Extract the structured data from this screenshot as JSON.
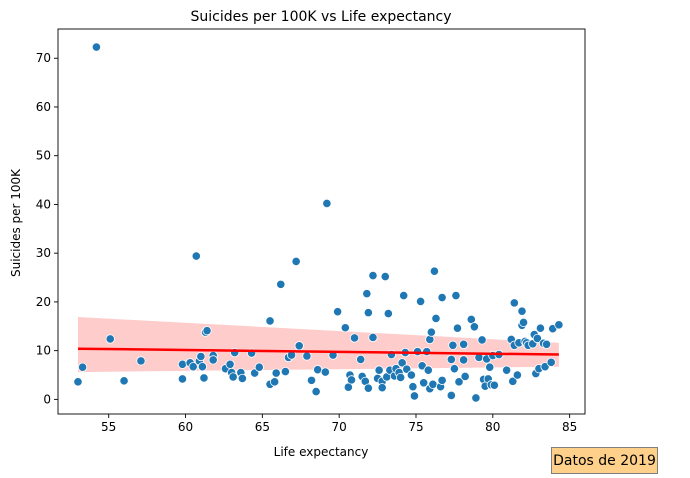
{
  "chart_data": {
    "type": "scatter",
    "title": "Suicides per 100K vs Life expectancy",
    "xlabel": "Life expectancy",
    "ylabel": "Suicides per 100K",
    "xlim": [
      51.7,
      86.0
    ],
    "ylim": [
      -3.0,
      76.0
    ],
    "xticks": [
      55,
      60,
      65,
      70,
      75,
      80,
      85
    ],
    "yticks": [
      0,
      10,
      20,
      30,
      40,
      50,
      60,
      70
    ],
    "grid": false,
    "points": [
      {
        "x": 53.0,
        "y": 3.6
      },
      {
        "x": 53.3,
        "y": 6.6
      },
      {
        "x": 54.2,
        "y": 72.3
      },
      {
        "x": 55.1,
        "y": 12.4
      },
      {
        "x": 56.0,
        "y": 3.8
      },
      {
        "x": 57.1,
        "y": 7.9
      },
      {
        "x": 59.8,
        "y": 4.2
      },
      {
        "x": 59.8,
        "y": 7.2
      },
      {
        "x": 60.3,
        "y": 7.5
      },
      {
        "x": 60.5,
        "y": 6.7
      },
      {
        "x": 60.7,
        "y": 29.4
      },
      {
        "x": 60.9,
        "y": 7.9
      },
      {
        "x": 61.0,
        "y": 8.8
      },
      {
        "x": 61.1,
        "y": 6.7
      },
      {
        "x": 61.2,
        "y": 4.4
      },
      {
        "x": 61.3,
        "y": 13.8
      },
      {
        "x": 61.4,
        "y": 14.1
      },
      {
        "x": 61.8,
        "y": 9.0
      },
      {
        "x": 61.8,
        "y": 8.1
      },
      {
        "x": 62.6,
        "y": 6.3
      },
      {
        "x": 62.9,
        "y": 7.2
      },
      {
        "x": 63.0,
        "y": 5.5
      },
      {
        "x": 63.1,
        "y": 4.6
      },
      {
        "x": 63.2,
        "y": 9.6
      },
      {
        "x": 63.6,
        "y": 5.5
      },
      {
        "x": 63.7,
        "y": 4.3
      },
      {
        "x": 64.3,
        "y": 9.5
      },
      {
        "x": 64.5,
        "y": 5.4
      },
      {
        "x": 64.8,
        "y": 6.6
      },
      {
        "x": 65.5,
        "y": 16.1
      },
      {
        "x": 65.5,
        "y": 3.1
      },
      {
        "x": 65.8,
        "y": 3.6
      },
      {
        "x": 65.9,
        "y": 5.4
      },
      {
        "x": 66.2,
        "y": 23.6
      },
      {
        "x": 66.5,
        "y": 5.7
      },
      {
        "x": 66.7,
        "y": 8.6
      },
      {
        "x": 66.9,
        "y": 9.1
      },
      {
        "x": 67.2,
        "y": 28.3
      },
      {
        "x": 67.4,
        "y": 11.0
      },
      {
        "x": 67.9,
        "y": 8.9
      },
      {
        "x": 68.2,
        "y": 3.9
      },
      {
        "x": 68.5,
        "y": 1.6
      },
      {
        "x": 68.6,
        "y": 6.1
      },
      {
        "x": 69.1,
        "y": 5.6
      },
      {
        "x": 69.2,
        "y": 40.2
      },
      {
        "x": 69.6,
        "y": 9.1
      },
      {
        "x": 69.9,
        "y": 18.0
      },
      {
        "x": 70.4,
        "y": 14.7
      },
      {
        "x": 70.6,
        "y": 2.5
      },
      {
        "x": 70.7,
        "y": 5.0
      },
      {
        "x": 70.8,
        "y": 4.0
      },
      {
        "x": 71.0,
        "y": 12.6
      },
      {
        "x": 71.4,
        "y": 8.2
      },
      {
        "x": 71.5,
        "y": 4.7
      },
      {
        "x": 71.7,
        "y": 3.7
      },
      {
        "x": 71.8,
        "y": 21.7
      },
      {
        "x": 71.9,
        "y": 17.8
      },
      {
        "x": 71.9,
        "y": 2.3
      },
      {
        "x": 72.2,
        "y": 12.7
      },
      {
        "x": 72.2,
        "y": 25.4
      },
      {
        "x": 72.5,
        "y": 4.3
      },
      {
        "x": 72.6,
        "y": 6.0
      },
      {
        "x": 72.8,
        "y": 3.7
      },
      {
        "x": 72.8,
        "y": 2.4
      },
      {
        "x": 73.0,
        "y": 25.2
      },
      {
        "x": 73.1,
        "y": 4.6
      },
      {
        "x": 73.2,
        "y": 17.6
      },
      {
        "x": 73.3,
        "y": 6.0
      },
      {
        "x": 73.4,
        "y": 9.2
      },
      {
        "x": 73.6,
        "y": 4.8
      },
      {
        "x": 73.7,
        "y": 6.3
      },
      {
        "x": 73.9,
        "y": 5.5
      },
      {
        "x": 74.0,
        "y": 4.5
      },
      {
        "x": 74.1,
        "y": 7.5
      },
      {
        "x": 74.2,
        "y": 21.3
      },
      {
        "x": 74.3,
        "y": 9.6
      },
      {
        "x": 74.4,
        "y": 6.2
      },
      {
        "x": 74.7,
        "y": 5.0
      },
      {
        "x": 74.8,
        "y": 2.6
      },
      {
        "x": 74.9,
        "y": 0.7
      },
      {
        "x": 75.1,
        "y": 9.8
      },
      {
        "x": 75.3,
        "y": 20.1
      },
      {
        "x": 75.4,
        "y": 6.9
      },
      {
        "x": 75.5,
        "y": 3.4
      },
      {
        "x": 75.7,
        "y": 9.8
      },
      {
        "x": 75.8,
        "y": 6.0
      },
      {
        "x": 75.9,
        "y": 2.2
      },
      {
        "x": 75.9,
        "y": 12.3
      },
      {
        "x": 76.0,
        "y": 13.8
      },
      {
        "x": 76.1,
        "y": 3.1
      },
      {
        "x": 76.2,
        "y": 26.3
      },
      {
        "x": 76.3,
        "y": 16.6
      },
      {
        "x": 76.6,
        "y": 2.6
      },
      {
        "x": 76.7,
        "y": 3.9
      },
      {
        "x": 76.7,
        "y": 20.9
      },
      {
        "x": 77.3,
        "y": 0.8
      },
      {
        "x": 77.3,
        "y": 8.2
      },
      {
        "x": 77.4,
        "y": 11.1
      },
      {
        "x": 77.5,
        "y": 6.3
      },
      {
        "x": 77.6,
        "y": 21.3
      },
      {
        "x": 77.7,
        "y": 14.6
      },
      {
        "x": 77.8,
        "y": 3.6
      },
      {
        "x": 78.1,
        "y": 8.1
      },
      {
        "x": 78.1,
        "y": 11.3
      },
      {
        "x": 78.2,
        "y": 4.7
      },
      {
        "x": 78.6,
        "y": 16.4
      },
      {
        "x": 78.8,
        "y": 14.9
      },
      {
        "x": 78.9,
        "y": 0.3
      },
      {
        "x": 79.1,
        "y": 8.6
      },
      {
        "x": 79.3,
        "y": 12.2
      },
      {
        "x": 79.4,
        "y": 4.1
      },
      {
        "x": 79.5,
        "y": 2.7
      },
      {
        "x": 79.6,
        "y": 8.3
      },
      {
        "x": 79.7,
        "y": 4.2
      },
      {
        "x": 79.8,
        "y": 6.6
      },
      {
        "x": 79.9,
        "y": 3.0
      },
      {
        "x": 80.0,
        "y": 9.0
      },
      {
        "x": 80.1,
        "y": 2.9
      },
      {
        "x": 80.4,
        "y": 9.2
      },
      {
        "x": 80.9,
        "y": 6.0
      },
      {
        "x": 81.2,
        "y": 12.3
      },
      {
        "x": 81.3,
        "y": 3.7
      },
      {
        "x": 81.4,
        "y": 11.1
      },
      {
        "x": 81.4,
        "y": 19.8
      },
      {
        "x": 81.6,
        "y": 5.0
      },
      {
        "x": 81.7,
        "y": 11.6
      },
      {
        "x": 81.9,
        "y": 15.2
      },
      {
        "x": 81.9,
        "y": 18.1
      },
      {
        "x": 82.0,
        "y": 15.8
      },
      {
        "x": 82.1,
        "y": 11.9
      },
      {
        "x": 82.2,
        "y": 11.6
      },
      {
        "x": 82.3,
        "y": 11.1
      },
      {
        "x": 82.6,
        "y": 11.4
      },
      {
        "x": 82.7,
        "y": 13.3
      },
      {
        "x": 82.8,
        "y": 5.3
      },
      {
        "x": 82.9,
        "y": 12.5
      },
      {
        "x": 83.0,
        "y": 6.3
      },
      {
        "x": 83.1,
        "y": 14.6
      },
      {
        "x": 83.3,
        "y": 11.5
      },
      {
        "x": 83.4,
        "y": 6.7
      },
      {
        "x": 83.5,
        "y": 11.3
      },
      {
        "x": 83.8,
        "y": 7.6
      },
      {
        "x": 83.9,
        "y": 14.5
      },
      {
        "x": 84.3,
        "y": 15.3
      }
    ],
    "regression": {
      "x": [
        53.0,
        84.3
      ],
      "y": [
        10.4,
        9.2
      ],
      "color": "#ff0000"
    },
    "confidence_band": {
      "x": [
        53.0,
        84.3
      ],
      "upper": [
        16.9,
        11.6
      ],
      "lower": [
        5.6,
        6.7
      ],
      "color": "#ffcccc"
    },
    "colors": {
      "points": "#1f77b4",
      "point_edge": "#ffffff",
      "frame": "#000000"
    },
    "annotation": {
      "text": "Datos de 2019",
      "background": "#ffd08a",
      "border": "#7f7f7f"
    }
  }
}
